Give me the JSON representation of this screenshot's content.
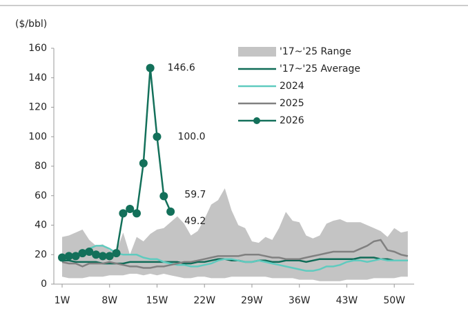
{
  "chart_data": {
    "type": "line",
    "unit_label": "($/bbl)",
    "categories": [
      "1W",
      null,
      null,
      null,
      null,
      null,
      null,
      "8W",
      null,
      null,
      null,
      null,
      null,
      null,
      "15W",
      null,
      null,
      null,
      null,
      null,
      null,
      "22W",
      null,
      null,
      null,
      null,
      null,
      null,
      "29W",
      null,
      null,
      null,
      null,
      null,
      null,
      "36W",
      null,
      null,
      null,
      null,
      null,
      null,
      "43W",
      null,
      null,
      null,
      null,
      null,
      null,
      "50W",
      null,
      null
    ],
    "ylim": [
      0,
      160
    ],
    "yticks": [
      0,
      20,
      40,
      60,
      80,
      100,
      120,
      140,
      160
    ],
    "series": [
      {
        "name": "'17~'25 Range",
        "style": "area",
        "color": "#c4c4c4",
        "low": [
          5,
          4,
          4,
          4,
          5,
          5,
          5,
          6,
          6,
          6,
          7,
          7,
          6,
          7,
          6,
          7,
          6,
          5,
          4,
          4,
          5,
          5,
          4,
          4,
          4,
          5,
          5,
          5,
          5,
          5,
          5,
          4,
          4,
          4,
          4,
          3,
          3,
          3,
          2,
          2,
          2,
          2,
          3,
          3,
          3,
          3,
          4,
          4,
          4,
          4,
          5,
          5
        ],
        "high": [
          32,
          33,
          35,
          37,
          30,
          26,
          27,
          23,
          22,
          35,
          20,
          32,
          29,
          34,
          37,
          38,
          42,
          46,
          41,
          33,
          36,
          44,
          54,
          57,
          65,
          50,
          40,
          38,
          29,
          28,
          32,
          30,
          38,
          49,
          43,
          42,
          33,
          31,
          33,
          41,
          43,
          44,
          42,
          42,
          42,
          40,
          38,
          36,
          32,
          38,
          35,
          36
        ]
      },
      {
        "name": "'17~'25 Average",
        "style": "line",
        "color": "#0f6b57",
        "values": [
          16,
          16,
          15,
          15,
          15,
          15,
          14,
          14,
          14,
          14,
          15,
          15,
          15,
          15,
          15,
          15,
          15,
          15,
          14,
          14,
          15,
          15,
          16,
          17,
          17,
          16,
          16,
          15,
          15,
          16,
          16,
          15,
          15,
          16,
          16,
          16,
          15,
          16,
          17,
          17,
          17,
          17,
          17,
          17,
          18,
          18,
          18,
          17,
          17,
          16,
          16,
          16
        ]
      },
      {
        "name": "2024",
        "style": "line",
        "color": "#5fcbbf",
        "values": [
          17,
          18,
          20,
          22,
          24,
          26,
          26,
          24,
          21,
          20,
          20,
          20,
          18,
          17,
          17,
          15,
          14,
          13,
          13,
          12,
          12,
          13,
          14,
          16,
          17,
          17,
          16,
          15,
          15,
          16,
          15,
          14,
          13,
          12,
          11,
          10,
          9,
          9,
          10,
          12,
          12,
          13,
          15,
          16,
          16,
          15,
          16,
          17,
          16,
          16,
          16,
          16
        ]
      },
      {
        "name": "2025",
        "style": "line",
        "color": "#808080",
        "values": [
          15,
          14,
          14,
          12,
          14,
          14,
          14,
          15,
          14,
          13,
          12,
          12,
          11,
          11,
          12,
          12,
          13,
          14,
          15,
          15,
          16,
          17,
          18,
          19,
          19,
          19,
          19,
          20,
          20,
          20,
          19,
          18,
          18,
          17,
          17,
          17,
          18,
          19,
          20,
          21,
          22,
          22,
          22,
          22,
          24,
          26,
          29,
          30,
          23,
          22,
          20,
          19
        ]
      },
      {
        "name": "2026",
        "style": "marker-line",
        "color": "#13705a",
        "values": [
          18,
          19,
          19,
          21,
          22,
          20,
          19,
          19,
          21,
          48,
          51,
          48,
          82,
          146.6,
          100.0,
          59.7,
          49.2,
          null,
          null,
          null,
          null,
          null,
          null,
          null,
          null,
          null,
          null,
          null,
          null,
          null,
          null,
          null,
          null,
          null,
          null,
          null,
          null,
          null,
          null,
          null,
          null,
          null,
          null,
          null,
          null,
          null,
          null,
          null,
          null,
          null,
          null,
          null
        ],
        "value_labels": [
          null,
          null,
          null,
          null,
          null,
          null,
          null,
          null,
          null,
          null,
          null,
          null,
          null,
          "146.6",
          "100.0",
          "59.7",
          "49.2",
          null,
          null,
          null,
          null,
          null,
          null,
          null,
          null,
          null,
          null,
          null,
          null,
          null,
          null,
          null,
          null,
          null,
          null,
          null,
          null,
          null,
          null,
          null,
          null,
          null,
          null,
          null,
          null,
          null,
          null,
          null,
          null,
          null,
          null,
          null
        ]
      }
    ]
  }
}
